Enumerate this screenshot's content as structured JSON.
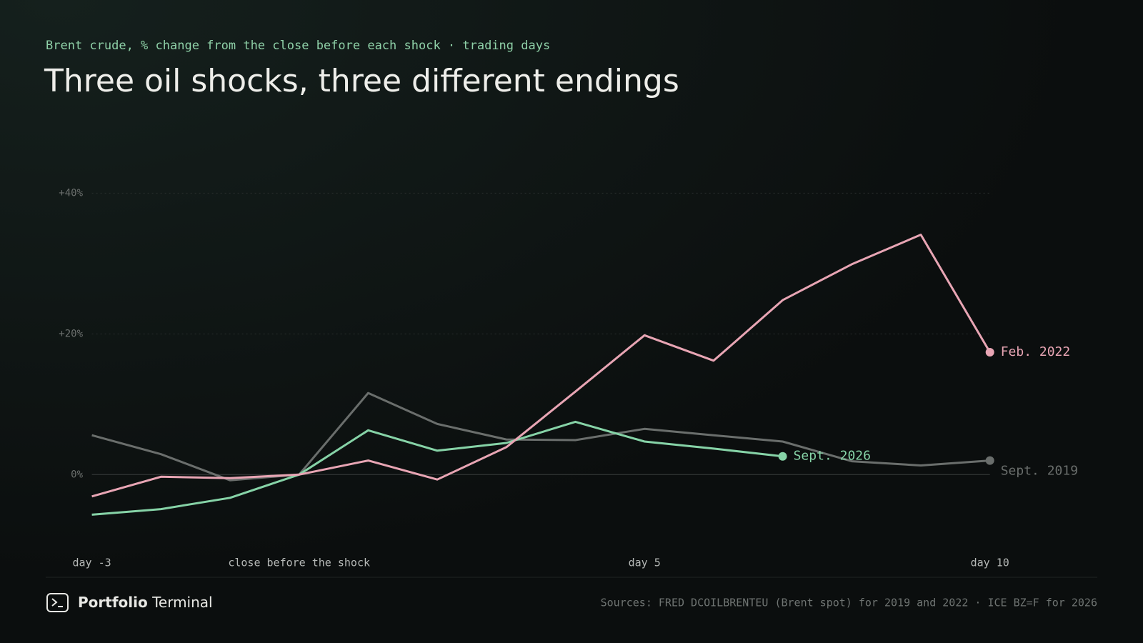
{
  "chart_data": {
    "type": "line",
    "subtitle": "Brent crude, % change from the close before each shock · trading days",
    "title": "Three oil shocks, three different endings",
    "x": [
      -3,
      -2,
      -1,
      0,
      1,
      2,
      3,
      4,
      5,
      6,
      7,
      8,
      9,
      10
    ],
    "series": [
      {
        "name": "Sept. 2019",
        "color": "#6a6e6c",
        "values": [
          5.6,
          2.9,
          -0.8,
          0,
          11.6,
          7.2,
          5.0,
          4.9,
          6.5,
          5.6,
          4.7,
          1.9,
          1.3,
          2.0
        ]
      },
      {
        "name": "Sept. 2026",
        "color": "#86d3a7",
        "values": [
          -5.7,
          -4.9,
          -3.3,
          0,
          6.3,
          3.4,
          4.5,
          7.5,
          4.7,
          3.7,
          2.6,
          null,
          null,
          null
        ]
      },
      {
        "name": "Feb. 2022",
        "color": "#e8a5b4",
        "values": [
          -3.1,
          -0.3,
          -0.5,
          0,
          2.0,
          -0.7,
          3.9,
          11.8,
          19.8,
          16.2,
          24.8,
          29.9,
          34.1,
          17.4
        ]
      }
    ],
    "xlim": [
      -3,
      10
    ],
    "xticks": [
      {
        "value": -3,
        "label": "day -3"
      },
      {
        "value": 0,
        "label": "close before the shock"
      },
      {
        "value": 5,
        "label": "day 5"
      },
      {
        "value": 10,
        "label": "day 10"
      }
    ],
    "ylim": [
      -8,
      40
    ],
    "yticks": [
      {
        "value": 0,
        "label": "0%"
      },
      {
        "value": 20,
        "label": "+20%"
      },
      {
        "value": 40,
        "label": "+40%"
      }
    ],
    "grid": true,
    "brand": {
      "bold": "Portfolio",
      "regular": "Terminal"
    },
    "source": "Sources: FRED DCOILBRENTEU (Brent spot) for 2019 and 2022 · ICE BZ=F for 2026"
  }
}
